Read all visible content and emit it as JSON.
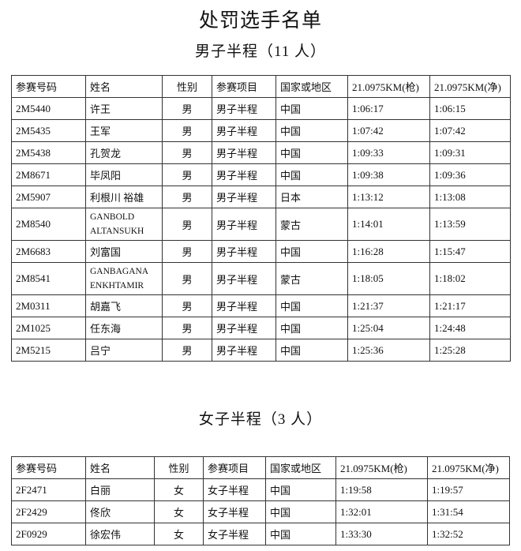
{
  "title": "处罚选手名单",
  "men": {
    "subtitle": "男子半程（11 人）",
    "headers": [
      "参赛号码",
      "姓名",
      "性别",
      "参赛项目",
      "国家或地区",
      "21.0975KM(枪)",
      "21.0975KM(净)"
    ],
    "rows": [
      [
        "2M5440",
        "许王",
        "男",
        "男子半程",
        "中国",
        "1:06:17",
        "1:06:15"
      ],
      [
        "2M5435",
        "王军",
        "男",
        "男子半程",
        "中国",
        "1:07:42",
        "1:07:42"
      ],
      [
        "2M5438",
        "孔贺龙",
        "男",
        "男子半程",
        "中国",
        "1:09:33",
        "1:09:31"
      ],
      [
        "2M8671",
        "毕凤阳",
        "男",
        "男子半程",
        "中国",
        "1:09:38",
        "1:09:36"
      ],
      [
        "2M5907",
        "利根川 裕雄",
        "男",
        "男子半程",
        "日本",
        "1:13:12",
        "1:13:08"
      ],
      [
        "2M8540",
        "GANBOLD ALTANSUKH",
        "男",
        "男子半程",
        "蒙古",
        "1:14:01",
        "1:13:59"
      ],
      [
        "2M6683",
        "刘富国",
        "男",
        "男子半程",
        "中国",
        "1:16:28",
        "1:15:47"
      ],
      [
        "2M8541",
        "GANBAGANA ENKHTAMIR",
        "男",
        "男子半程",
        "蒙古",
        "1:18:05",
        "1:18:02"
      ],
      [
        "2M0311",
        "胡嘉飞",
        "男",
        "男子半程",
        "中国",
        "1:21:37",
        "1:21:17"
      ],
      [
        "2M1025",
        "任东海",
        "男",
        "男子半程",
        "中国",
        "1:25:04",
        "1:24:48"
      ],
      [
        "2M5215",
        "吕宁",
        "男",
        "男子半程",
        "中国",
        "1:25:36",
        "1:25:28"
      ]
    ]
  },
  "women": {
    "subtitle": "女子半程（3 人）",
    "headers": [
      "参赛号码",
      "姓名",
      "性别",
      "参赛项目",
      "国家或地区",
      "21.0975KM(枪)",
      "21.0975KM(净)"
    ],
    "rows": [
      [
        "2F2471",
        "白丽",
        "女",
        "女子半程",
        "中国",
        "1:19:58",
        "1:19:57"
      ],
      [
        "2F2429",
        "佟欣",
        "女",
        "女子半程",
        "中国",
        "1:32:01",
        "1:31:54"
      ],
      [
        "2F0929",
        "徐宏伟",
        "女",
        "女子半程",
        "中国",
        "1:33:30",
        "1:32:52"
      ]
    ]
  }
}
